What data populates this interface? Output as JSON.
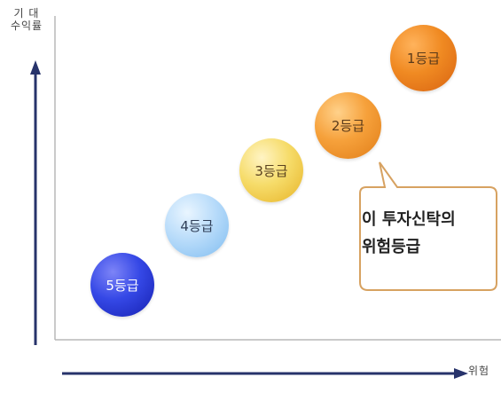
{
  "axes": {
    "y_label": "기   대\n수익률",
    "x_label": "위험"
  },
  "grades": [
    {
      "label": "5등급",
      "color": "#2b3bd8"
    },
    {
      "label": "4등급",
      "color": "#a9d4f6"
    },
    {
      "label": "3등급",
      "color": "#f1cf55"
    },
    {
      "label": "2등급",
      "color": "#f29a34"
    },
    {
      "label": "1등급",
      "color": "#ec7c17"
    }
  ],
  "callout": {
    "text": "이   투자신탁의\n위험등급",
    "border_color": "#d7a261"
  }
}
